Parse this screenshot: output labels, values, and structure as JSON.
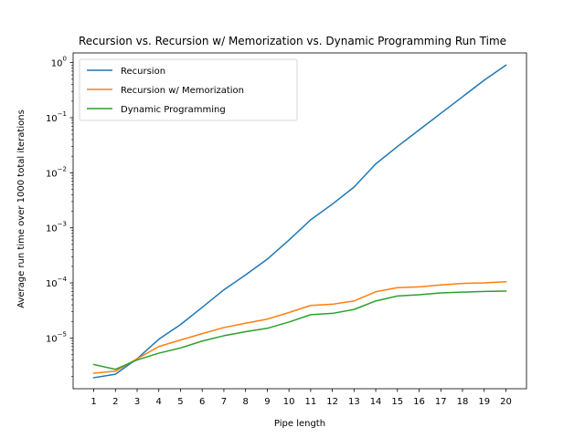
{
  "chart_data": {
    "type": "line",
    "title": "Recursion vs. Recursion w/ Memorization vs. Dynamic Programming Run Time",
    "xlabel": "Pipe length",
    "ylabel": "Average run time over 1000 total iterations",
    "yscale": "log",
    "ylim": [
      1.2e-06,
      1.5
    ],
    "xlim": [
      0.05,
      20.95
    ],
    "x": [
      1,
      2,
      3,
      4,
      5,
      6,
      7,
      8,
      9,
      10,
      11,
      12,
      13,
      14,
      15,
      16,
      17,
      18,
      19,
      20
    ],
    "x_ticks": [
      "1",
      "2",
      "3",
      "4",
      "5",
      "6",
      "7",
      "8",
      "9",
      "10",
      "11",
      "12",
      "13",
      "14",
      "15",
      "16",
      "17",
      "18",
      "19",
      "20"
    ],
    "y_ticks": [
      {
        "value": 1e-05,
        "base": "10",
        "exp": "−5"
      },
      {
        "value": 0.0001,
        "base": "10",
        "exp": "−4"
      },
      {
        "value": 0.001,
        "base": "10",
        "exp": "−3"
      },
      {
        "value": 0.01,
        "base": "10",
        "exp": "−2"
      },
      {
        "value": 0.1,
        "base": "10",
        "exp": "−1"
      },
      {
        "value": 1,
        "base": "10",
        "exp": "0"
      }
    ],
    "legend_position": "upper left",
    "grid": false,
    "series": [
      {
        "name": "Recursion",
        "color": "#1f77b4",
        "values": [
          1.9e-06,
          2.2e-06,
          4.2e-06,
          9.5e-06,
          1.75e-05,
          3.6e-05,
          7.5e-05,
          0.00014,
          0.00027,
          0.0006,
          0.0014,
          0.0027,
          0.0055,
          0.0145,
          0.03,
          0.06,
          0.12,
          0.24,
          0.48,
          0.9
        ]
      },
      {
        "name": "Recursion w/ Memorization",
        "color": "#ff7f0e",
        "values": [
          2.3e-06,
          2.5e-06,
          4.2e-06,
          7e-06,
          9.2e-06,
          1.2e-05,
          1.55e-05,
          1.85e-05,
          2.2e-05,
          2.9e-05,
          3.9e-05,
          4.1e-05,
          4.7e-05,
          6.9e-05,
          8.2e-05,
          8.5e-05,
          9.2e-05,
          9.8e-05,
          0.0001,
          0.000105
        ]
      },
      {
        "name": "Dynamic Programming",
        "color": "#2ca02c",
        "values": [
          3.3e-06,
          2.7e-06,
          4e-06,
          5.3e-06,
          6.6e-06,
          8.8e-06,
          1.1e-05,
          1.3e-05,
          1.5e-05,
          1.95e-05,
          2.65e-05,
          2.8e-05,
          3.3e-05,
          4.7e-05,
          5.8e-05,
          6.1e-05,
          6.6e-05,
          6.8e-05,
          7e-05,
          7.1e-05
        ]
      }
    ]
  }
}
